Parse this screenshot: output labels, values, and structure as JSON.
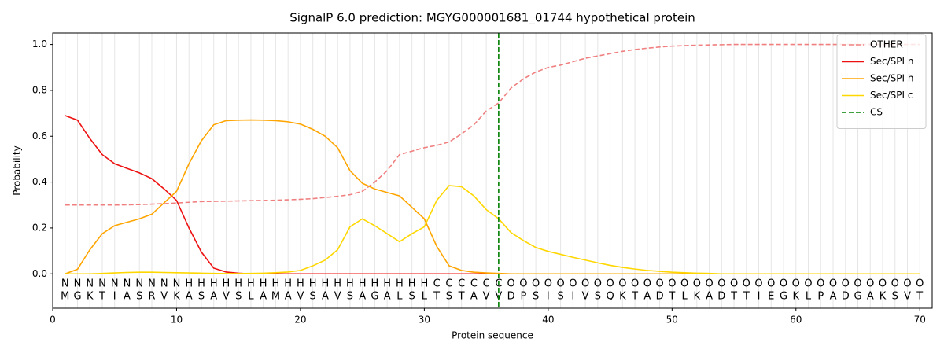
{
  "chart_data": {
    "type": "line",
    "title": "SignalP 6.0 prediction: MGYG000001681_01744 hypothetical protein",
    "xlabel": "Protein sequence",
    "ylabel": "Probability",
    "x": [
      1,
      2,
      3,
      4,
      5,
      6,
      7,
      8,
      9,
      10,
      11,
      12,
      13,
      14,
      15,
      16,
      17,
      18,
      19,
      20,
      21,
      22,
      23,
      24,
      25,
      26,
      27,
      28,
      29,
      30,
      31,
      32,
      33,
      34,
      35,
      36,
      37,
      38,
      39,
      40,
      41,
      42,
      43,
      44,
      45,
      46,
      47,
      48,
      49,
      50,
      51,
      52,
      53,
      54,
      55,
      56,
      57,
      58,
      59,
      60,
      61,
      62,
      63,
      64,
      65,
      66,
      67,
      68,
      69,
      70
    ],
    "residues": [
      "M",
      "G",
      "K",
      "T",
      "I",
      "A",
      "S",
      "R",
      "V",
      "K",
      "A",
      "S",
      "A",
      "V",
      "S",
      "L",
      "A",
      "M",
      "A",
      "V",
      "S",
      "A",
      "V",
      "S",
      "A",
      "G",
      "A",
      "L",
      "S",
      "L",
      "T",
      "S",
      "T",
      "A",
      "V",
      "V",
      "D",
      "P",
      "S",
      "I",
      "S",
      "I",
      "V",
      "S",
      "Q",
      "K",
      "T",
      "A",
      "D",
      "T",
      "L",
      "K",
      "A",
      "D",
      "T",
      "T",
      "I",
      "E",
      "G",
      "K",
      "L",
      "P",
      "A",
      "D",
      "G",
      "A",
      "K",
      "S",
      "V",
      "T"
    ],
    "region_labels": [
      "N",
      "N",
      "N",
      "N",
      "N",
      "N",
      "N",
      "N",
      "N",
      "N",
      "H",
      "H",
      "H",
      "H",
      "H",
      "H",
      "H",
      "H",
      "H",
      "H",
      "H",
      "H",
      "H",
      "H",
      "H",
      "H",
      "H",
      "H",
      "H",
      "H",
      "C",
      "C",
      "C",
      "C",
      "C",
      "C",
      "O",
      "O",
      "O",
      "O",
      "O",
      "O",
      "O",
      "O",
      "O",
      "O",
      "O",
      "O",
      "O",
      "O",
      "O",
      "O",
      "O",
      "O",
      "O",
      "O",
      "O",
      "O",
      "O",
      "O",
      "O",
      "O",
      "O",
      "O",
      "O",
      "O",
      "O",
      "O",
      "O",
      "O"
    ],
    "region_colors": {
      "N": "#ee1111",
      "H": "#ffa500",
      "C": "#ffd700",
      "O": "#888888"
    },
    "series": [
      {
        "name": "OTHER",
        "color": "#f08080",
        "linestyle": "dashed",
        "values": [
          0.3,
          0.3,
          0.3,
          0.3,
          0.3,
          0.301,
          0.302,
          0.304,
          0.306,
          0.309,
          0.312,
          0.315,
          0.316,
          0.317,
          0.318,
          0.319,
          0.32,
          0.321,
          0.323,
          0.325,
          0.328,
          0.333,
          0.338,
          0.345,
          0.36,
          0.4,
          0.45,
          0.52,
          0.535,
          0.55,
          0.56,
          0.575,
          0.61,
          0.65,
          0.71,
          0.745,
          0.81,
          0.85,
          0.88,
          0.9,
          0.91,
          0.925,
          0.94,
          0.95,
          0.96,
          0.97,
          0.978,
          0.984,
          0.989,
          0.993,
          0.995,
          0.997,
          0.998,
          0.999,
          1.0,
          1.0,
          1.0,
          1.0,
          1.0,
          1.0,
          1.0,
          1.0,
          1.0,
          1.0,
          1.0,
          1.0,
          1.0,
          1.0,
          1.0,
          1.0
        ]
      },
      {
        "name": "Sec/SPI n",
        "color": "#ee1111",
        "linestyle": "solid",
        "values": [
          0.69,
          0.67,
          0.59,
          0.52,
          0.48,
          0.46,
          0.44,
          0.415,
          0.37,
          0.32,
          0.2,
          0.095,
          0.025,
          0.008,
          0.003,
          0,
          0,
          0,
          0,
          0,
          0,
          0,
          0,
          0,
          0,
          0,
          0,
          0,
          0,
          0,
          0,
          0,
          0,
          0,
          0,
          0,
          0,
          0,
          0,
          0,
          0,
          0,
          0,
          0,
          0,
          0,
          0,
          0,
          0,
          0,
          0,
          0,
          0,
          0,
          0,
          0,
          0,
          0,
          0,
          0,
          0,
          0,
          0,
          0,
          0,
          0,
          0,
          0,
          0,
          0
        ]
      },
      {
        "name": "Sec/SPI h",
        "color": "#ffa500",
        "linestyle": "solid",
        "values": [
          0,
          0.02,
          0.105,
          0.175,
          0.21,
          0.225,
          0.24,
          0.26,
          0.31,
          0.36,
          0.48,
          0.58,
          0.65,
          0.668,
          0.67,
          0.671,
          0.67,
          0.668,
          0.663,
          0.653,
          0.63,
          0.6,
          0.55,
          0.45,
          0.395,
          0.37,
          0.355,
          0.34,
          0.29,
          0.24,
          0.12,
          0.035,
          0.015,
          0.007,
          0.004,
          0.002,
          0,
          0,
          0,
          0,
          0,
          0,
          0,
          0,
          0,
          0,
          0,
          0,
          0,
          0,
          0,
          0,
          0,
          0,
          0,
          0,
          0,
          0,
          0,
          0,
          0,
          0,
          0,
          0,
          0,
          0,
          0,
          0,
          0,
          0
        ]
      },
      {
        "name": "Sec/SPI c",
        "color": "#ffd700",
        "linestyle": "solid",
        "values": [
          0,
          0,
          0,
          0.002,
          0.004,
          0.006,
          0.007,
          0.007,
          0.006,
          0.005,
          0.004,
          0.003,
          0.002,
          0.001,
          0.001,
          0.002,
          0.003,
          0.005,
          0.008,
          0.015,
          0.035,
          0.06,
          0.105,
          0.205,
          0.24,
          0.21,
          0.175,
          0.14,
          0.175,
          0.205,
          0.32,
          0.385,
          0.38,
          0.34,
          0.28,
          0.24,
          0.18,
          0.145,
          0.115,
          0.098,
          0.085,
          0.072,
          0.06,
          0.048,
          0.037,
          0.028,
          0.021,
          0.015,
          0.011,
          0.007,
          0.005,
          0.003,
          0.002,
          0,
          0,
          0,
          0,
          0,
          0,
          0,
          0,
          0,
          0,
          0,
          0,
          0,
          0,
          0,
          0,
          0
        ]
      }
    ],
    "vlines": [
      {
        "name": "CS",
        "color": "#008000",
        "x": 36
      }
    ],
    "xlim": [
      0,
      71
    ],
    "ylim": [
      -0.15,
      1.05
    ],
    "xticks": [
      0,
      10,
      20,
      30,
      40,
      50,
      60,
      70
    ],
    "yticks": [
      {
        "value": 0,
        "label": "0.0"
      },
      0.2,
      0.4,
      0.6,
      0.8,
      {
        "value": 1,
        "label": "1.0"
      }
    ],
    "residue_grid": true,
    "legend": "upper right"
  }
}
